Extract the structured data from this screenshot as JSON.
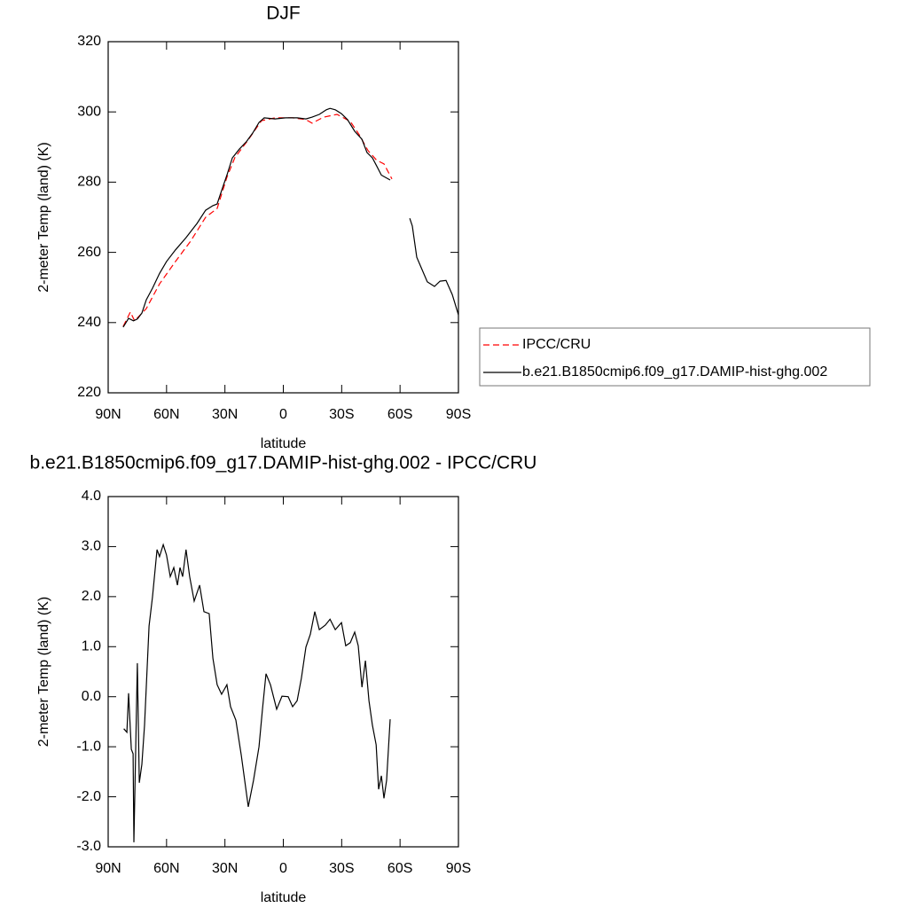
{
  "chart_data": [
    {
      "type": "line",
      "title": "DJF",
      "x_label": "latitude",
      "y_label": "2-meter Temp (land) (K)",
      "xlim": [
        90,
        -90
      ],
      "xticks": [
        {
          "value": 90,
          "label": "90N"
        },
        {
          "value": 60,
          "label": "60N"
        },
        {
          "value": 30,
          "label": "30N"
        },
        0,
        {
          "value": -30,
          "label": "30S"
        },
        {
          "value": -60,
          "label": "60S"
        },
        {
          "value": -90,
          "label": "90S"
        }
      ],
      "ylim": [
        220,
        320
      ],
      "yticks": [
        220,
        240,
        260,
        280,
        300,
        320
      ],
      "legend": "right",
      "series": [
        {
          "name": "IPCC/CRU",
          "color": "#ff0000",
          "dash": true,
          "x": [
            82.3,
            78.6,
            76.4,
            70.4,
            63.6,
            55.4,
            47.6,
            39.9,
            34,
            29,
            24.9,
            18.1,
            11.2,
            4.3,
            -4.8,
            -11.6,
            -14.8,
            -20.7,
            -27.6,
            -34.4,
            -39,
            -43.5,
            -48,
            -51.7,
            -55.8
          ],
          "values": [
            238.9,
            243,
            240.5,
            244,
            251,
            257.4,
            263.2,
            270,
            272.5,
            281.4,
            287,
            292,
            297.5,
            298.3,
            298.3,
            297.8,
            296.8,
            298.5,
            299.3,
            297.3,
            293.5,
            289,
            286.2,
            285.2,
            280.9
          ]
        },
        {
          "name": "b.e21.B1850cmip6.f09_g17.DAMIP-hist-ghg.002",
          "color": "#000000",
          "dash": false,
          "x": [
            82.3,
            79.5,
            77,
            75,
            72.7,
            70.4,
            67.2,
            63.6,
            60,
            55.4,
            50,
            44.4,
            39.9,
            36.2,
            34,
            31.7,
            29,
            26.2,
            22.6,
            19,
            15.7,
            12.5,
            9.8,
            4.3,
            -1.2,
            -7.1,
            -11.6,
            -14.8,
            -18.5,
            -22.1,
            -24,
            -26.7,
            -29.9,
            -33,
            -36.7,
            -40.4,
            -43,
            -45.8,
            -48,
            -50.4,
            -54.9,
            -60,
            -65,
            -66.3,
            -68.6,
            -70.9,
            -74,
            -77.7,
            -80.5,
            -83.6,
            -86.8,
            -90
          ],
          "values": [
            238.7,
            241.2,
            240.5,
            241,
            242.7,
            246.5,
            249.8,
            254,
            257.4,
            260.7,
            264.2,
            268.2,
            272,
            273.3,
            273.8,
            277.6,
            282,
            286.9,
            289.4,
            291.5,
            294,
            297,
            298.3,
            298,
            298.3,
            298.3,
            298,
            298.5,
            299.3,
            300.6,
            301,
            300.6,
            299.5,
            297.8,
            294.5,
            292.2,
            288.4,
            286.9,
            284.6,
            282,
            280.6,
            null,
            269.7,
            267.5,
            258.6,
            255.6,
            251.6,
            250.3,
            251.8,
            252,
            248,
            242.2
          ]
        }
      ]
    },
    {
      "type": "line",
      "title": "b.e21.B1850cmip6.f09_g17.DAMIP-hist-ghg.002 - IPCC/CRU",
      "x_label": "latitude",
      "y_label": "2-meter Temp (land) (K)",
      "xlim": [
        90,
        -90
      ],
      "xticks": [
        {
          "value": 90,
          "label": "90N"
        },
        {
          "value": 60,
          "label": "60N"
        },
        {
          "value": 30,
          "label": "30N"
        },
        0,
        {
          "value": -30,
          "label": "30S"
        },
        {
          "value": -60,
          "label": "60S"
        },
        {
          "value": -90,
          "label": "90S"
        }
      ],
      "ylim": [
        -3,
        4
      ],
      "yticks": [
        {
          "value": -3,
          "label": "-3.0"
        },
        {
          "value": -2,
          "label": "-2.0"
        },
        {
          "value": -1,
          "label": "-1.0"
        },
        {
          "value": 0,
          "label": "0.0"
        },
        {
          "value": 1,
          "label": "1.0"
        },
        {
          "value": 2,
          "label": "2.0"
        },
        {
          "value": 3,
          "label": "3.0"
        },
        {
          "value": 4,
          "label": "4.0"
        }
      ],
      "series": [
        {
          "color": "#000000",
          "dash": false,
          "x": [
            82,
            80.4,
            79.5,
            78.1,
            77.2,
            76.8,
            75,
            74,
            72.7,
            71.3,
            69,
            67.2,
            64.9,
            63.6,
            61.7,
            60,
            58.1,
            56.3,
            54.4,
            53.1,
            51.7,
            50,
            48.1,
            45.8,
            43,
            40.8,
            38.1,
            36.2,
            34,
            31.7,
            29,
            27.1,
            24.4,
            21.6,
            18,
            15.3,
            12.5,
            10.7,
            8.9,
            6.6,
            3.4,
            0.7,
            -2.5,
            -4.8,
            -7.1,
            -9.3,
            -11.6,
            -13.9,
            -16.2,
            -18.5,
            -21.6,
            -24,
            -26.7,
            -29.9,
            -32.1,
            -34.4,
            -36.7,
            -38.5,
            -40.4,
            -42.2,
            -44,
            -45.8,
            -47.7,
            -49,
            -50.4,
            -51.7,
            -53.1,
            -54.9
          ],
          "values": [
            -0.64,
            -0.71,
            0.07,
            -1.05,
            -1.14,
            -2.91,
            0.67,
            -1.72,
            -1.35,
            -0.57,
            1.41,
            2.0,
            2.94,
            2.8,
            3.04,
            2.83,
            2.4,
            2.58,
            2.23,
            2.58,
            2.4,
            2.94,
            2.4,
            1.91,
            2.23,
            1.7,
            1.66,
            0.77,
            0.24,
            0.05,
            0.24,
            -0.2,
            -0.47,
            -1.17,
            -2.2,
            -1.67,
            -1.0,
            -0.25,
            0.46,
            0.24,
            -0.25,
            0.01,
            0,
            -0.2,
            -0.08,
            0.37,
            0.99,
            1.25,
            1.7,
            1.34,
            1.43,
            1.55,
            1.34,
            1.48,
            1.02,
            1.08,
            1.29,
            1.02,
            0.19,
            0.72,
            -0.08,
            -0.57,
            -0.96,
            -1.85,
            -1.58,
            -2.03,
            -1.67,
            -0.45
          ]
        }
      ]
    }
  ]
}
